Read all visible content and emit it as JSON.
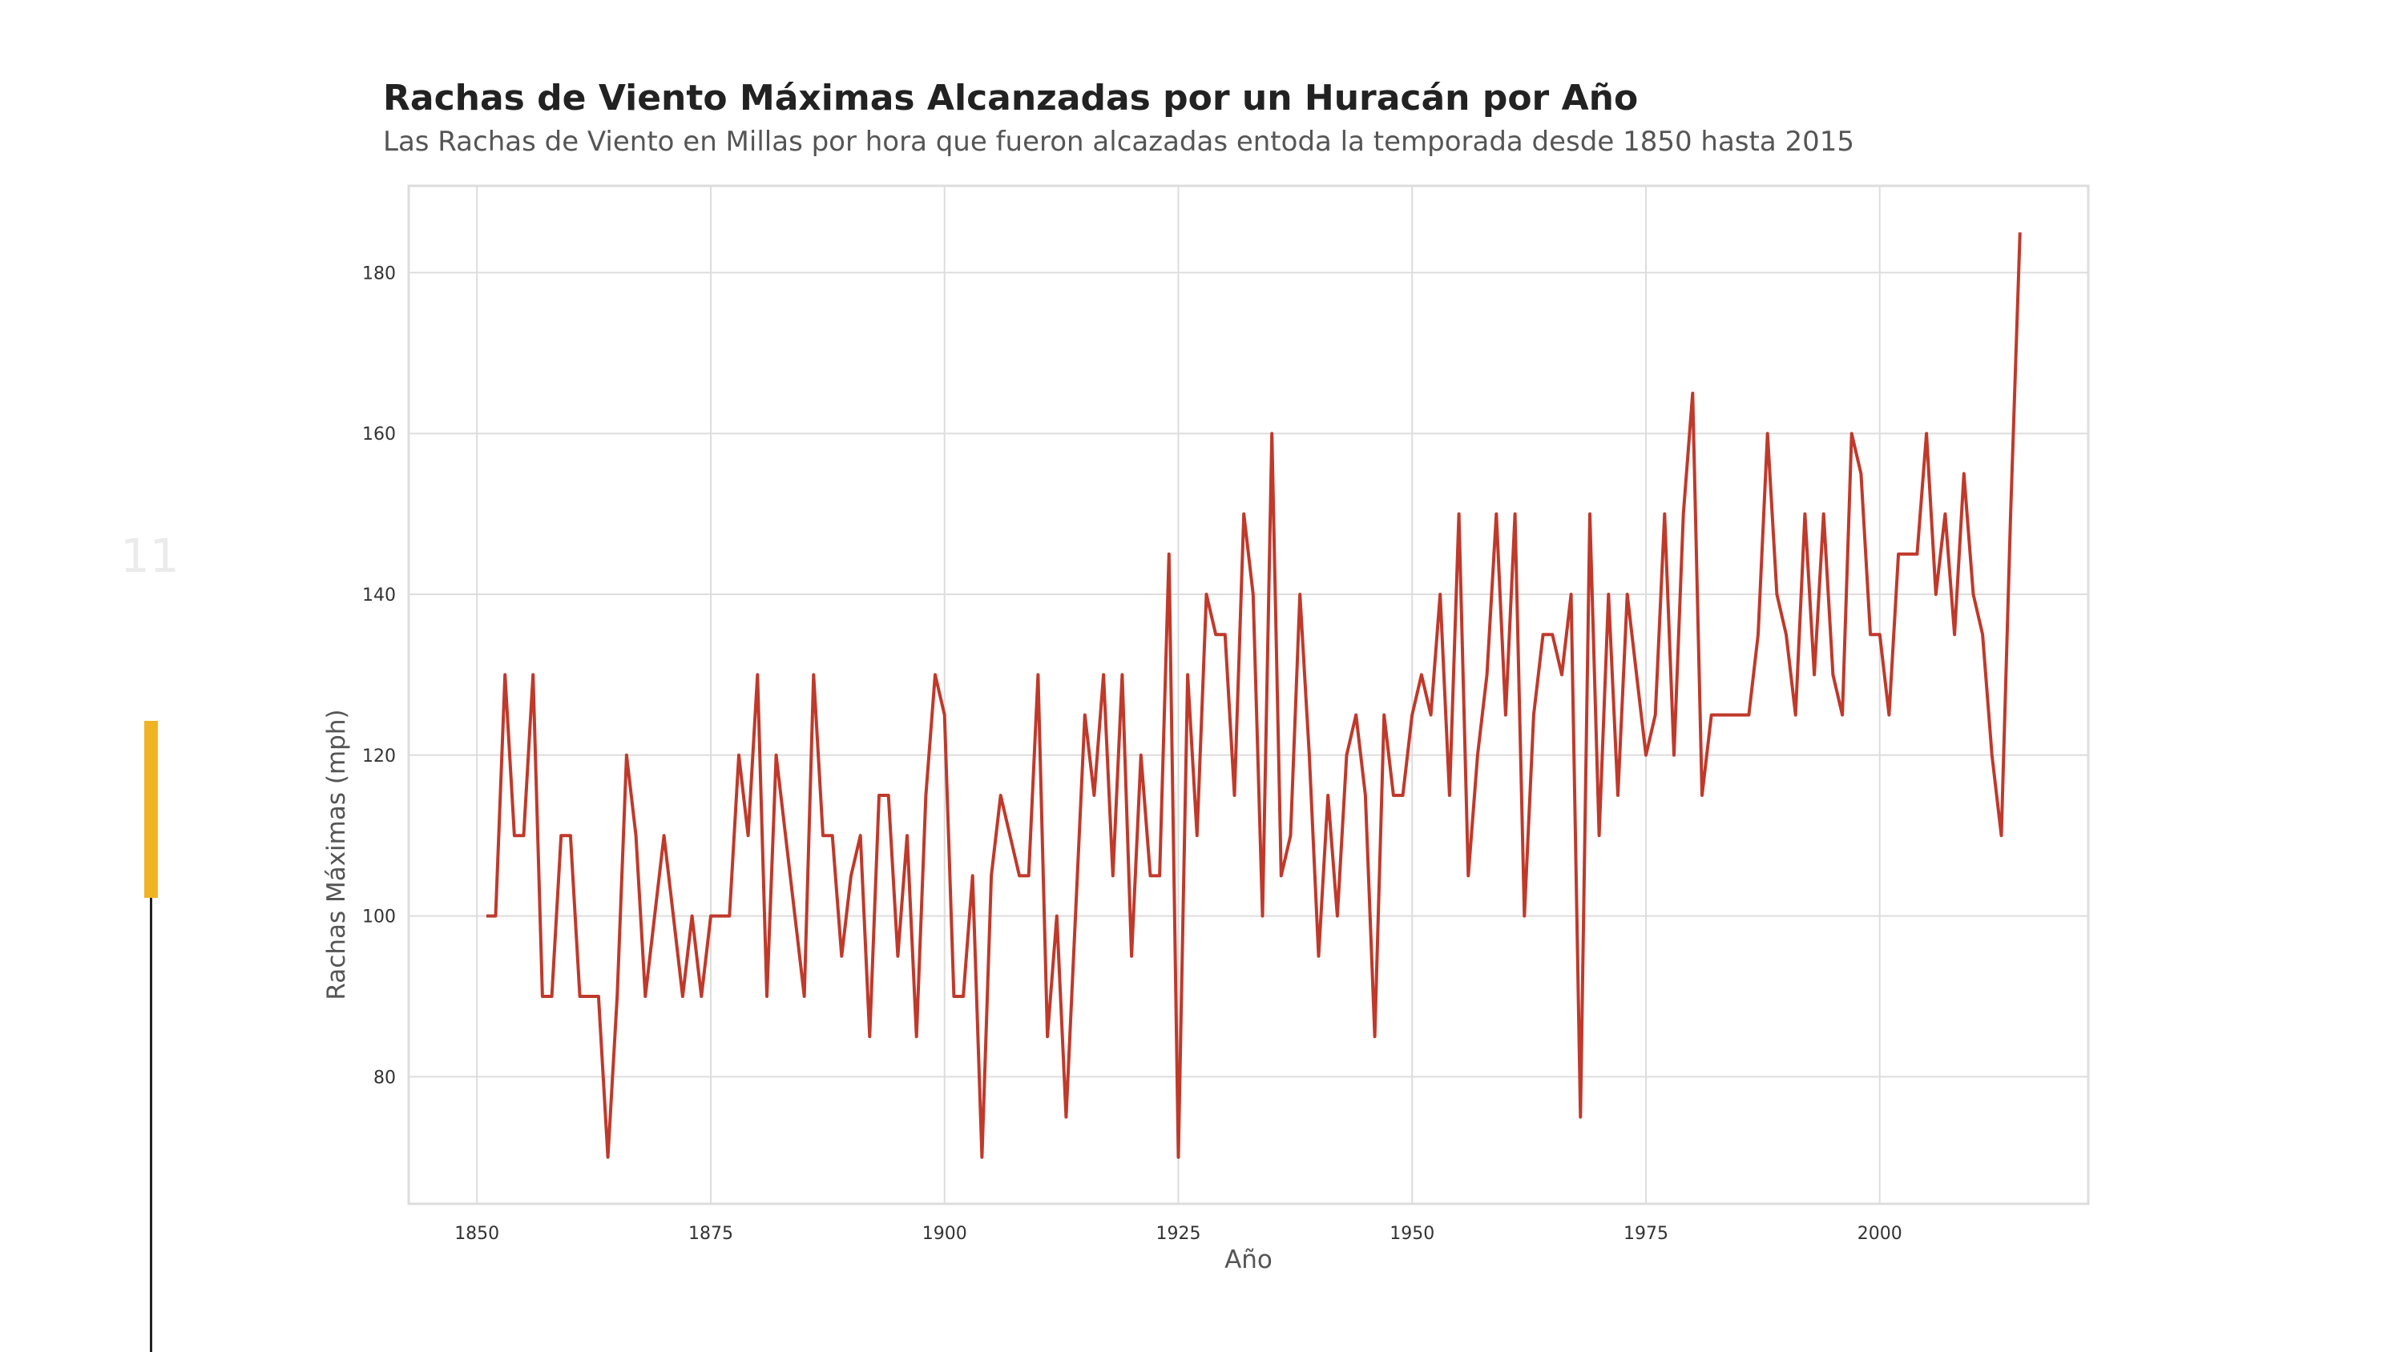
{
  "slide": {
    "number": "11",
    "progress": 0.28
  },
  "colors": {
    "line": "#c0392b",
    "accent": "#f0b323",
    "grid": "#dddddd"
  },
  "chart_data": {
    "type": "line",
    "title": "Rachas de Viento Máximas Alcanzadas por un Huracán por Año",
    "subtitle": "Las Rachas de Viento en Millas por hora que fueron alcazadas entoda la temporada desde 1850 hasta 2015",
    "xlabel": "Año",
    "ylabel": "Rachas Máximas (mph)",
    "xlim": [
      1842.7,
      2022.3
    ],
    "ylim": [
      64.2,
      190.8
    ],
    "xticks": [
      1850,
      1875,
      1900,
      1925,
      1950,
      1975,
      2000
    ],
    "yticks": [
      80,
      100,
      120,
      140,
      160,
      180
    ],
    "grid": true,
    "series": [
      {
        "x": [
          1851,
          1852,
          1853,
          1854,
          1855,
          1856,
          1857,
          1858,
          1859,
          1860,
          1861,
          1862,
          1863,
          1864,
          1865,
          1866,
          1867,
          1868,
          1869,
          1870,
          1871,
          1872,
          1873,
          1874,
          1875,
          1876,
          1877,
          1878,
          1879,
          1880,
          1881,
          1882,
          1883,
          1884,
          1885,
          1886,
          1887,
          1888,
          1889,
          1890,
          1891,
          1892,
          1893,
          1894,
          1895,
          1896,
          1897,
          1898,
          1899,
          1900,
          1901,
          1902,
          1903,
          1904,
          1905,
          1906,
          1907,
          1908,
          1909,
          1910,
          1911,
          1912,
          1913,
          1914,
          1915,
          1916,
          1917,
          1918,
          1919,
          1920,
          1921,
          1922,
          1923,
          1924,
          1925,
          1926,
          1927,
          1928,
          1929,
          1930,
          1931,
          1932,
          1933,
          1934,
          1935,
          1936,
          1937,
          1938,
          1939,
          1940,
          1941,
          1942,
          1943,
          1944,
          1945,
          1946,
          1947,
          1948,
          1949,
          1950,
          1951,
          1952,
          1953,
          1954,
          1955,
          1956,
          1957,
          1958,
          1959,
          1960,
          1961,
          1962,
          1963,
          1964,
          1965,
          1966,
          1967,
          1968,
          1969,
          1970,
          1971,
          1972,
          1973,
          1974,
          1975,
          1976,
          1977,
          1978,
          1979,
          1980,
          1981,
          1982,
          1983,
          1984,
          1985,
          1986,
          1987,
          1988,
          1989,
          1990,
          1991,
          1992,
          1993,
          1994,
          1995,
          1996,
          1997,
          1998,
          1999,
          2000,
          2001,
          2002,
          2003,
          2004,
          2005,
          2006,
          2007,
          2008,
          2009,
          2010,
          2011,
          2012,
          2013,
          2014,
          2015
        ],
        "values": [
          100,
          100,
          130,
          110,
          110,
          130,
          90,
          90,
          110,
          110,
          90,
          90,
          90,
          70,
          90,
          120,
          110,
          90,
          100,
          110,
          100,
          90,
          100,
          90,
          100,
          100,
          100,
          120,
          110,
          130,
          90,
          120,
          110,
          100,
          90,
          130,
          110,
          110,
          95,
          105,
          110,
          85,
          115,
          115,
          95,
          110,
          85,
          115,
          130,
          125,
          90,
          90,
          105,
          70,
          105,
          115,
          110,
          105,
          105,
          130,
          85,
          100,
          75,
          100,
          125,
          115,
          130,
          105,
          130,
          95,
          120,
          105,
          105,
          145,
          70,
          130,
          110,
          140,
          135,
          135,
          115,
          150,
          140,
          100,
          160,
          105,
          110,
          140,
          120,
          95,
          115,
          100,
          120,
          125,
          115,
          85,
          125,
          115,
          115,
          125,
          130,
          125,
          140,
          115,
          150,
          105,
          120,
          130,
          150,
          125,
          150,
          100,
          125,
          135,
          135,
          130,
          140,
          75,
          150,
          110,
          140,
          115,
          140,
          130,
          120,
          125,
          150,
          120,
          150,
          165,
          115,
          125,
          125,
          125,
          125,
          125,
          135,
          160,
          140,
          135,
          125,
          150,
          130,
          150,
          130,
          125,
          160,
          155,
          135,
          135,
          125,
          145,
          145,
          145,
          160,
          140,
          150,
          135,
          155,
          140,
          135,
          120,
          110,
          150,
          185
        ]
      }
    ]
  }
}
